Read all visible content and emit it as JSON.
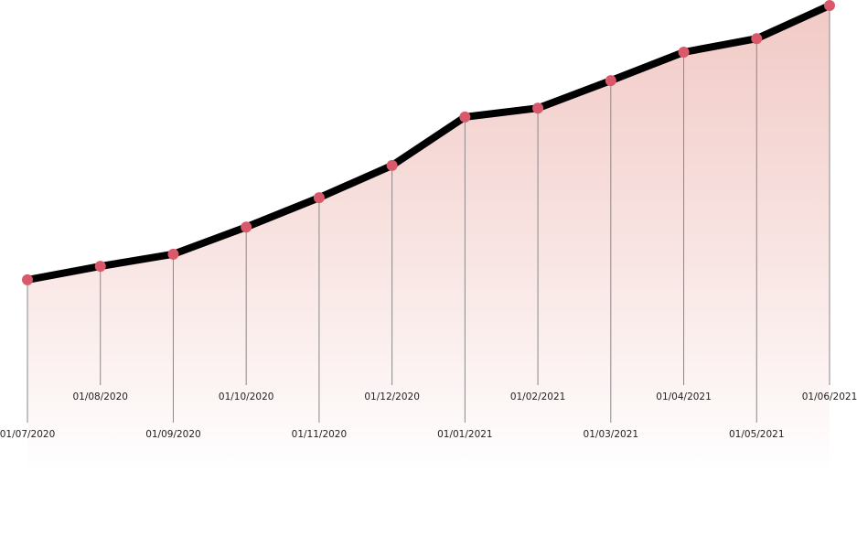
{
  "chart_data": {
    "type": "line",
    "categories": [
      "01/07/2020",
      "01/08/2020",
      "01/09/2020",
      "01/10/2020",
      "01/11/2020",
      "01/12/2020",
      "01/01/2021",
      "01/02/2021",
      "01/03/2021",
      "01/04/2021",
      "01/05/2021",
      "01/06/2021"
    ],
    "series": [
      {
        "color": "#000000",
        "values": [
          41.2,
          44.1,
          46.7,
          52.5,
          58.8,
          65.7,
          76.1,
          78.0,
          83.9,
          90.0,
          92.9,
          100
        ]
      }
    ],
    "marker_color": "#d9596a",
    "fill_color": "#f0c4c0",
    "ylim": [
      0,
      100
    ]
  }
}
